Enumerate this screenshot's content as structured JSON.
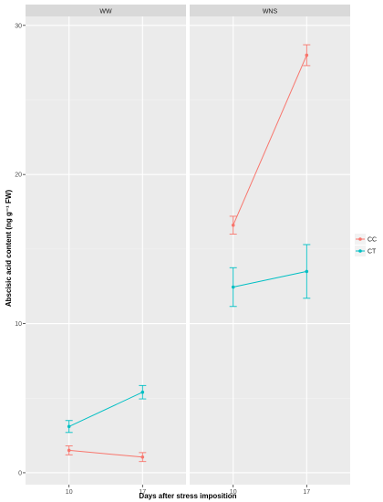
{
  "chart_data": {
    "type": "line",
    "xlabel": "Days after stress imposition",
    "ylabel": "Abscisic acid content (ng g⁻¹ FW)",
    "x_categories": [
      "10",
      "17"
    ],
    "ylim": [
      -0.8,
      30.6
    ],
    "yticks": [
      0,
      10,
      20,
      30
    ],
    "grid": true,
    "legend_position": "right",
    "panels": [
      {
        "label": "WW",
        "series": [
          {
            "name": "CC",
            "color": "#F8766D",
            "values": [
              1.5,
              1.05
            ],
            "errors": [
              0.3,
              0.3
            ]
          },
          {
            "name": "CT",
            "color": "#00BFC4",
            "values": [
              3.1,
              5.4
            ],
            "errors": [
              0.4,
              0.45
            ]
          }
        ]
      },
      {
        "label": "WNS",
        "series": [
          {
            "name": "CC",
            "color": "#F8766D",
            "values": [
              16.6,
              28.0
            ],
            "errors": [
              0.6,
              0.7
            ]
          },
          {
            "name": "CT",
            "color": "#00BFC4",
            "values": [
              12.45,
              13.5
            ],
            "errors": [
              1.3,
              1.8
            ]
          }
        ]
      }
    ]
  }
}
